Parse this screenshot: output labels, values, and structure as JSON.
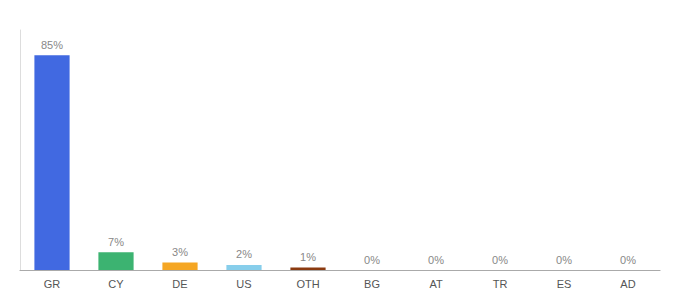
{
  "chart_data": {
    "type": "bar",
    "categories": [
      "GR",
      "CY",
      "DE",
      "US",
      "OTH",
      "BG",
      "AT",
      "TR",
      "ES",
      "AD"
    ],
    "values": [
      85,
      7,
      3,
      2,
      1,
      0,
      0,
      0,
      0,
      0
    ],
    "value_labels": [
      "85%",
      "7%",
      "3%",
      "2%",
      "1%",
      "0%",
      "0%",
      "0%",
      "0%",
      "0%"
    ],
    "colors": [
      "#4169e1",
      "#3cb371",
      "#f5a623",
      "#87ceeb",
      "#8b3a10",
      "#4169e1",
      "#4169e1",
      "#4169e1",
      "#4169e1",
      "#4169e1"
    ],
    "ylim": [
      0,
      95
    ],
    "grid": false,
    "data_labels": true,
    "tick_labels": "x"
  }
}
